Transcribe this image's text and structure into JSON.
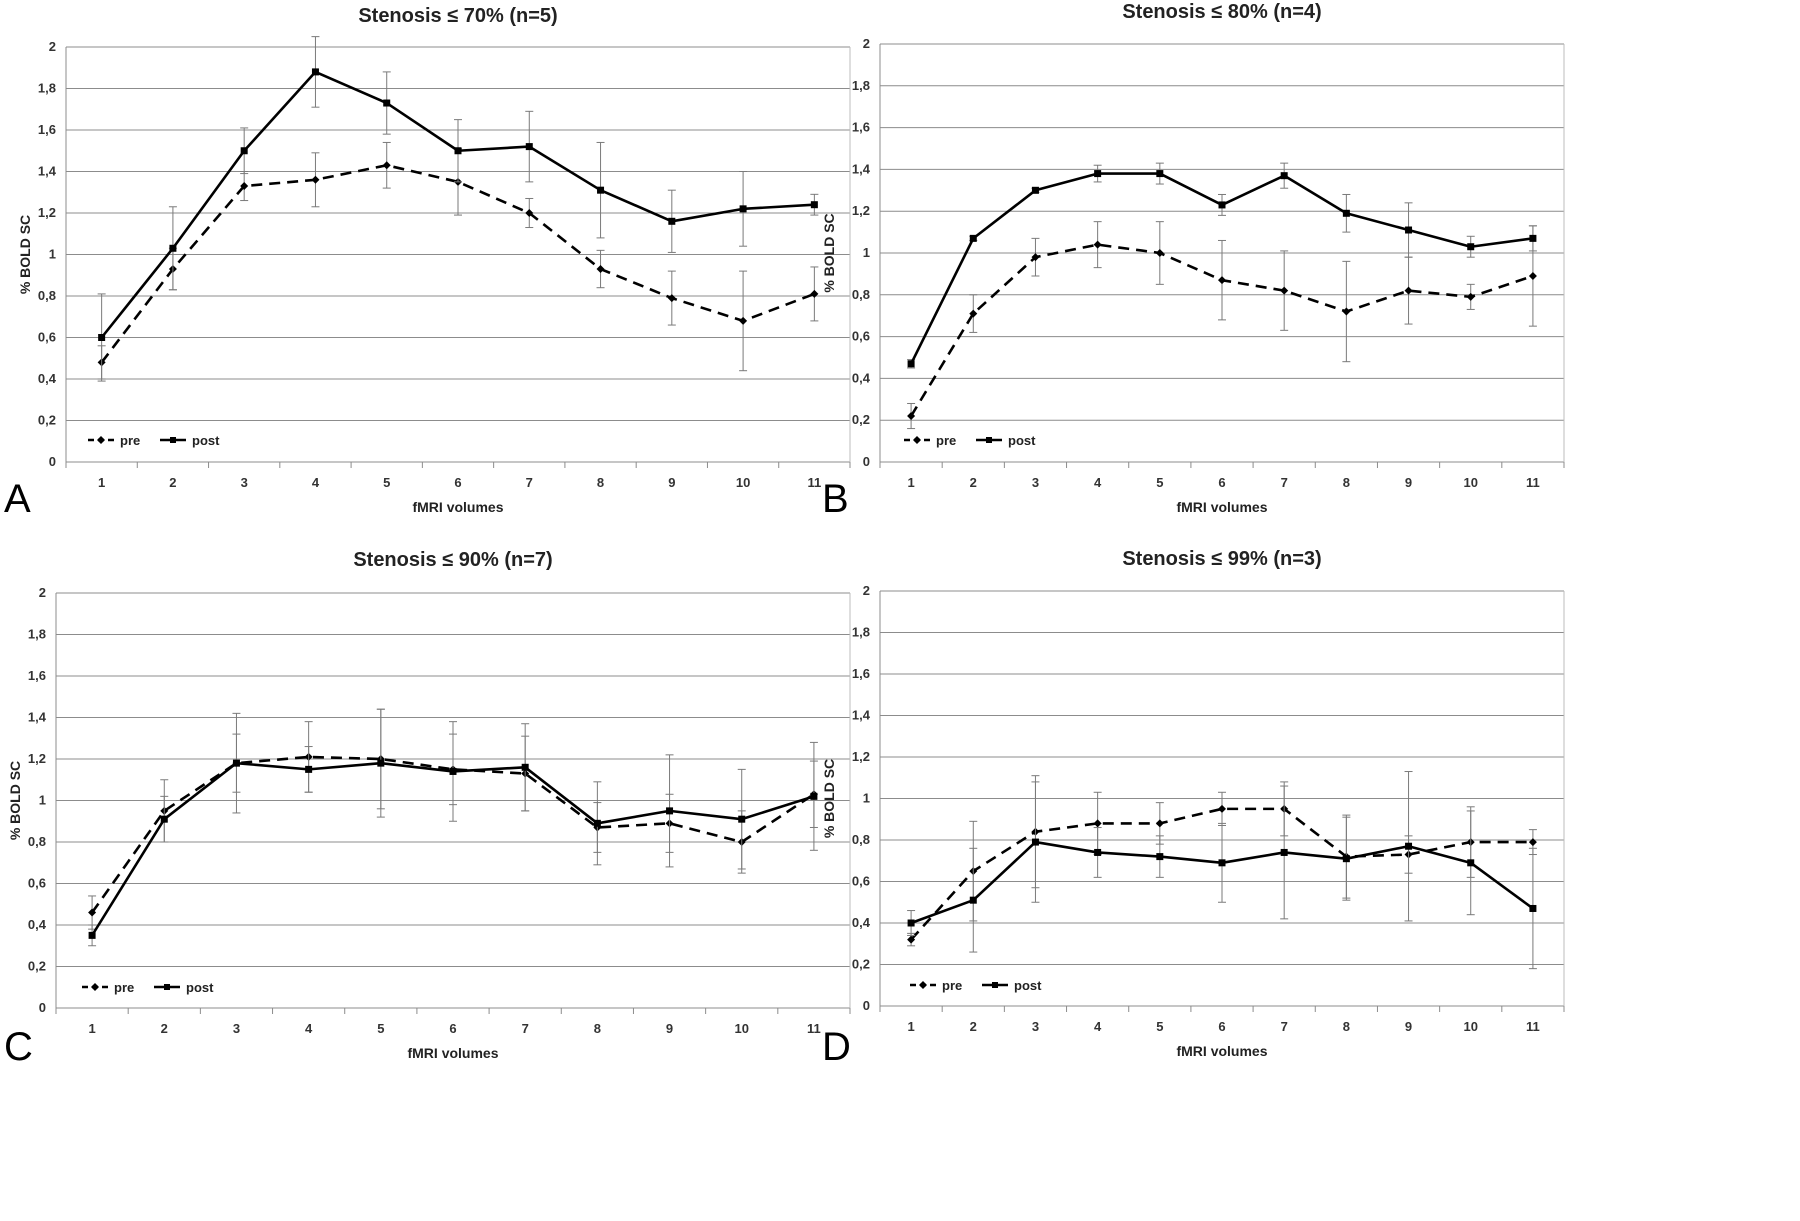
{
  "chart_data": [
    {
      "type": "line",
      "panel_letter": "A",
      "title": "Stenosis ≤ 70% (n=5)",
      "xlabel": "fMRI volumes",
      "ylabel": "% BOLD  SC",
      "categories": [
        "1",
        "2",
        "3",
        "4",
        "5",
        "6",
        "7",
        "8",
        "9",
        "10",
        "11"
      ],
      "ylim": [
        0,
        2
      ],
      "yticks": [
        "0",
        "0,2",
        "0,4",
        "0,6",
        "0,8",
        "1",
        "1,2",
        "1,4",
        "1,6",
        "1,8",
        "2"
      ],
      "grid": true,
      "legend_position": "bottom-left",
      "series": [
        {
          "name": "pre",
          "style": "dashed",
          "marker": "diamond",
          "values": [
            0.48,
            0.93,
            1.33,
            1.36,
            1.43,
            1.35,
            1.2,
            0.93,
            0.79,
            0.68,
            0.81
          ],
          "error": [
            0.08,
            0.1,
            0.07,
            0.13,
            0.11,
            0.16,
            0.07,
            0.09,
            0.13,
            0.24,
            0.13
          ]
        },
        {
          "name": "post",
          "style": "solid",
          "marker": "square",
          "values": [
            0.6,
            1.03,
            1.5,
            1.88,
            1.73,
            1.5,
            1.52,
            1.31,
            1.16,
            1.22,
            1.24
          ],
          "error": [
            0.21,
            0.2,
            0.11,
            0.17,
            0.15,
            0.15,
            0.17,
            0.23,
            0.15,
            0.18,
            0.05
          ]
        }
      ]
    },
    {
      "type": "line",
      "panel_letter": "B",
      "title": "Stenosis ≤ 80% (n=4)",
      "xlabel": "fMRI volumes",
      "ylabel": "% BOLD  SC",
      "categories": [
        "1",
        "2",
        "3",
        "4",
        "5",
        "6",
        "7",
        "8",
        "9",
        "10",
        "11"
      ],
      "ylim": [
        0,
        2
      ],
      "yticks": [
        "0",
        "0,2",
        "0,4",
        "0,6",
        "0,8",
        "1",
        "1,2",
        "1,4",
        "1,6",
        "1,8",
        "2"
      ],
      "grid": true,
      "legend_position": "bottom-left",
      "series": [
        {
          "name": "pre",
          "style": "dashed",
          "marker": "diamond",
          "values": [
            0.22,
            0.71,
            0.98,
            1.04,
            1.0,
            0.87,
            0.82,
            0.72,
            0.82,
            0.79,
            0.89
          ],
          "error": [
            0.06,
            0.09,
            0.09,
            0.11,
            0.15,
            0.19,
            0.19,
            0.24,
            0.16,
            0.06,
            0.24
          ]
        },
        {
          "name": "post",
          "style": "solid",
          "marker": "square",
          "values": [
            0.47,
            1.07,
            1.3,
            1.38,
            1.38,
            1.23,
            1.37,
            1.19,
            1.11,
            1.03,
            1.07
          ],
          "error": [
            0.02,
            0.01,
            0.01,
            0.04,
            0.05,
            0.05,
            0.06,
            0.09,
            0.13,
            0.05,
            0.06
          ]
        }
      ]
    },
    {
      "type": "line",
      "panel_letter": "C",
      "title": "Stenosis ≤ 90% (n=7)",
      "xlabel": "fMRI volumes",
      "ylabel": "% BOLD  SC",
      "categories": [
        "1",
        "2",
        "3",
        "4",
        "5",
        "6",
        "7",
        "8",
        "9",
        "10",
        "11"
      ],
      "ylim": [
        0,
        2
      ],
      "yticks": [
        "0",
        "0,2",
        "0,4",
        "0,6",
        "0,8",
        "1",
        "1,2",
        "1,4",
        "1,6",
        "1,8",
        "2"
      ],
      "grid": true,
      "legend_position": "bottom-left",
      "series": [
        {
          "name": "pre",
          "style": "dashed",
          "marker": "diamond",
          "values": [
            0.46,
            0.95,
            1.18,
            1.21,
            1.2,
            1.15,
            1.13,
            0.87,
            0.89,
            0.8,
            1.03
          ],
          "error": [
            0.08,
            0.15,
            0.14,
            0.17,
            0.24,
            0.17,
            0.18,
            0.12,
            0.14,
            0.15,
            0.16
          ]
        },
        {
          "name": "post",
          "style": "solid",
          "marker": "square",
          "values": [
            0.35,
            0.91,
            1.18,
            1.15,
            1.18,
            1.14,
            1.16,
            0.89,
            0.95,
            0.91,
            1.02
          ],
          "error": [
            0.05,
            0.11,
            0.24,
            0.11,
            0.26,
            0.24,
            0.21,
            0.2,
            0.27,
            0.24,
            0.26
          ]
        }
      ]
    },
    {
      "type": "line",
      "panel_letter": "D",
      "title": "Stenosis ≤ 99% (n=3)",
      "xlabel": "fMRI volumes",
      "ylabel": "% BOLD  SC",
      "categories": [
        "1",
        "2",
        "3",
        "4",
        "5",
        "6",
        "7",
        "8",
        "9",
        "10",
        "11"
      ],
      "ylim": [
        0,
        2
      ],
      "yticks": [
        "0",
        "0,2",
        "0,4",
        "0,6",
        "0,8",
        "1",
        "1,2",
        "1,4",
        "1,6",
        "1,8",
        "2"
      ],
      "grid": true,
      "legend_position": "bottom-left",
      "series": [
        {
          "name": "pre",
          "style": "dashed",
          "marker": "diamond",
          "values": [
            0.32,
            0.65,
            0.84,
            0.88,
            0.88,
            0.95,
            0.95,
            0.72,
            0.73,
            0.79,
            0.79
          ],
          "error": [
            0.03,
            0.24,
            0.27,
            0.15,
            0.1,
            0.08,
            0.13,
            0.2,
            0.09,
            0.17,
            0.06
          ]
        },
        {
          "name": "post",
          "style": "solid",
          "marker": "square",
          "values": [
            0.4,
            0.51,
            0.79,
            0.74,
            0.72,
            0.69,
            0.74,
            0.71,
            0.77,
            0.69,
            0.47
          ],
          "error": [
            0.06,
            0.25,
            0.29,
            0.12,
            0.1,
            0.19,
            0.32,
            0.2,
            0.36,
            0.25,
            0.29
          ]
        }
      ]
    }
  ]
}
